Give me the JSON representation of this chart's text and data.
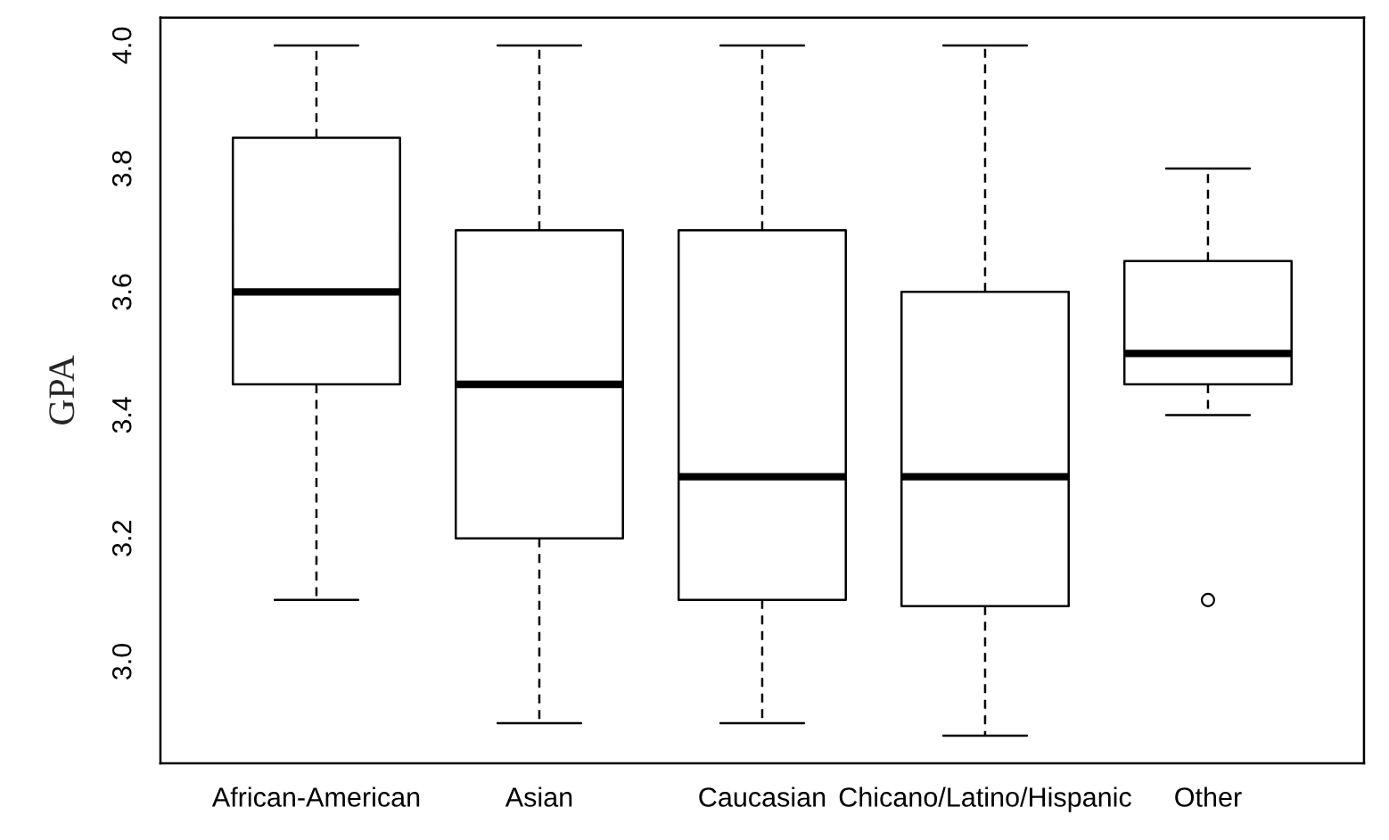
{
  "chart_data": {
    "type": "box",
    "ylabel": "GPA",
    "categories": [
      "African-American",
      "Asian",
      "Caucasian",
      "Chicano/Latino/Hispanic",
      "Other"
    ],
    "boxes": [
      {
        "low": 3.1,
        "q1": 3.45,
        "median": 3.6,
        "q3": 3.85,
        "high": 4.0
      },
      {
        "low": 2.9,
        "q1": 3.2,
        "median": 3.45,
        "q3": 3.7,
        "high": 4.0
      },
      {
        "low": 2.9,
        "q1": 3.1,
        "median": 3.3,
        "q3": 3.7,
        "high": 4.0
      },
      {
        "low": 2.88,
        "q1": 3.09,
        "median": 3.3,
        "q3": 3.6,
        "high": 4.0
      },
      {
        "low": 3.4,
        "q1": 3.45,
        "median": 3.5,
        "q3": 3.65,
        "high": 3.8,
        "outliers": [
          3.1
        ]
      }
    ],
    "ylim": [
      2.835,
      4.045
    ],
    "yticks": [
      {
        "value": 3,
        "label": "3.0"
      },
      3.2,
      3.4,
      3.6,
      3.8,
      {
        "value": 4,
        "label": "4.0"
      }
    ],
    "grid": false,
    "legend": false
  }
}
